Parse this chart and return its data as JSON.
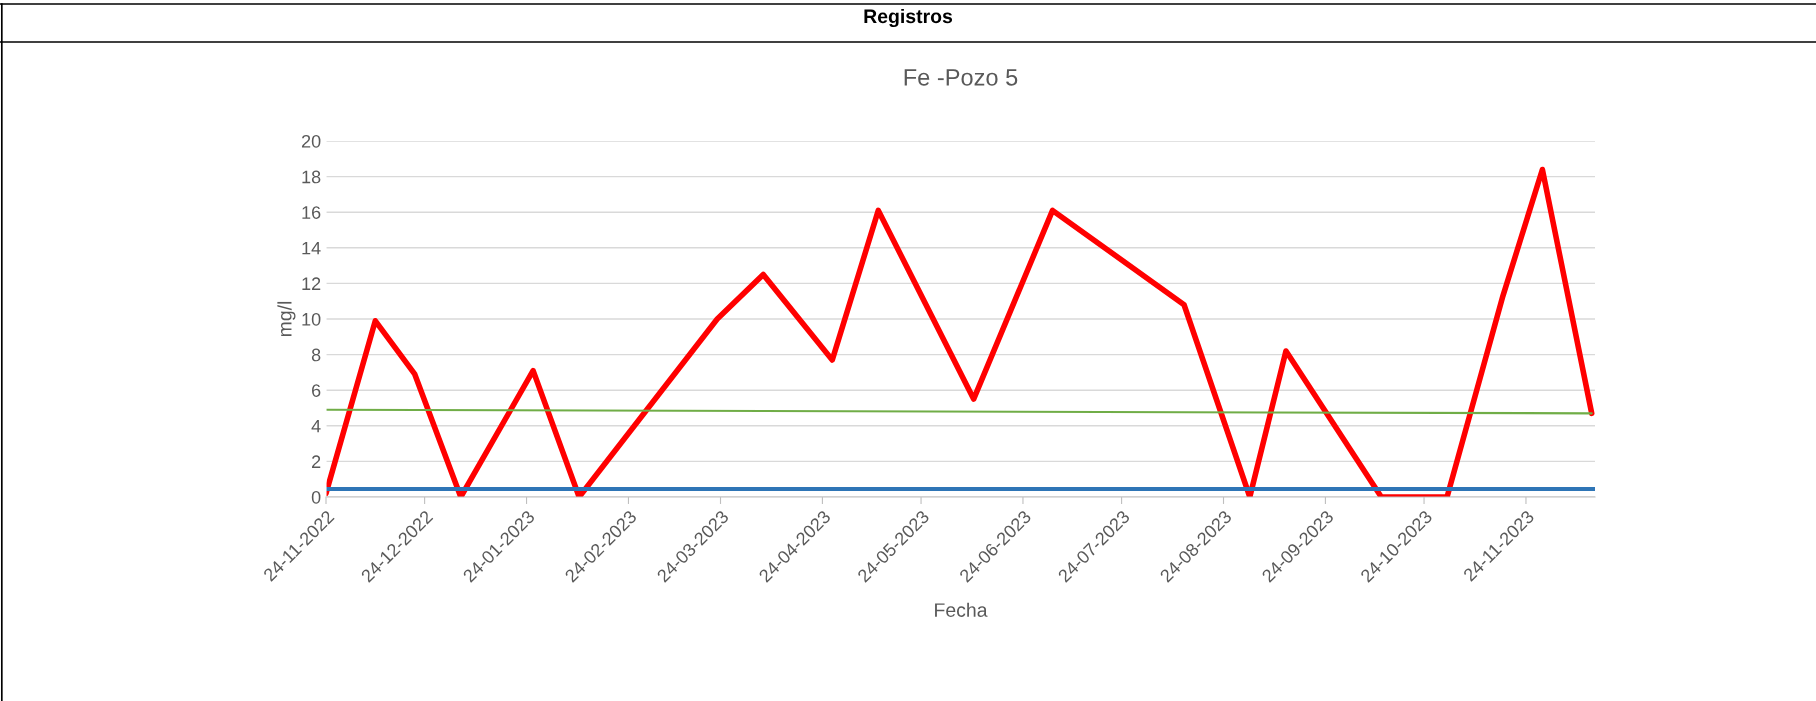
{
  "chart_data": {
    "type": "line",
    "title": "Fe -Pozo 5",
    "xlabel": "Fecha",
    "ylabel": "mg/l",
    "annotations": [
      "Registros"
    ],
    "series": [
      {
        "color": "#ff0000",
        "x": [
          "2022-11-24",
          "2022-12-09",
          "2022-12-21",
          "2023-01-04",
          "2023-01-26",
          "2023-02-09",
          "2023-03-23",
          "2023-04-06",
          "2023-04-27",
          "2023-05-11",
          "2023-06-09",
          "2023-07-03",
          "2023-08-12",
          "2023-09-01",
          "2023-09-12",
          "2023-10-11",
          "2023-10-31",
          "2023-11-17",
          "2023-11-29",
          "2023-12-14"
        ],
        "values": [
          0.2,
          9.9,
          6.9,
          0,
          7.1,
          0,
          10,
          12.5,
          7.7,
          16.1,
          5.5,
          16.1,
          10.8,
          0,
          8.2,
          0,
          0,
          11.3,
          18.4,
          4.7
        ]
      },
      {
        "color": "#70ad47",
        "x": [
          "2022-11-24",
          "2023-12-14"
        ],
        "values": [
          4.9,
          4.7
        ]
      }
    ],
    "ref_lines": [
      {
        "axis": "y",
        "value": 0.45,
        "color": "#2e75b6"
      }
    ],
    "xlim": [
      "2022-11-24",
      "2023-12-15"
    ],
    "xticks": [
      {
        "value": "2022-11-24",
        "label": "24-11-2022"
      },
      {
        "value": "2022-12-24",
        "label": "24-12-2022"
      },
      {
        "value": "2023-01-24",
        "label": "24-01-2023"
      },
      {
        "value": "2023-02-24",
        "label": "24-02-2023"
      },
      {
        "value": "2023-03-24",
        "label": "24-03-2023"
      },
      {
        "value": "2023-04-24",
        "label": "24-04-2023"
      },
      {
        "value": "2023-05-24",
        "label": "24-05-2023"
      },
      {
        "value": "2023-06-24",
        "label": "24-06-2023"
      },
      {
        "value": "2023-07-24",
        "label": "24-07-2023"
      },
      {
        "value": "2023-08-24",
        "label": "24-08-2023"
      },
      {
        "value": "2023-09-24",
        "label": "24-09-2023"
      },
      {
        "value": "2023-10-24",
        "label": "24-10-2023"
      },
      {
        "value": "2023-11-24",
        "label": "24-11-2023"
      }
    ],
    "ylim": [
      0,
      20
    ],
    "yticks": [
      0,
      2,
      4,
      6,
      8,
      10,
      12,
      14,
      16,
      18,
      20
    ],
    "grid": "y",
    "legend": false,
    "marker": "none",
    "line_style": "solid"
  }
}
